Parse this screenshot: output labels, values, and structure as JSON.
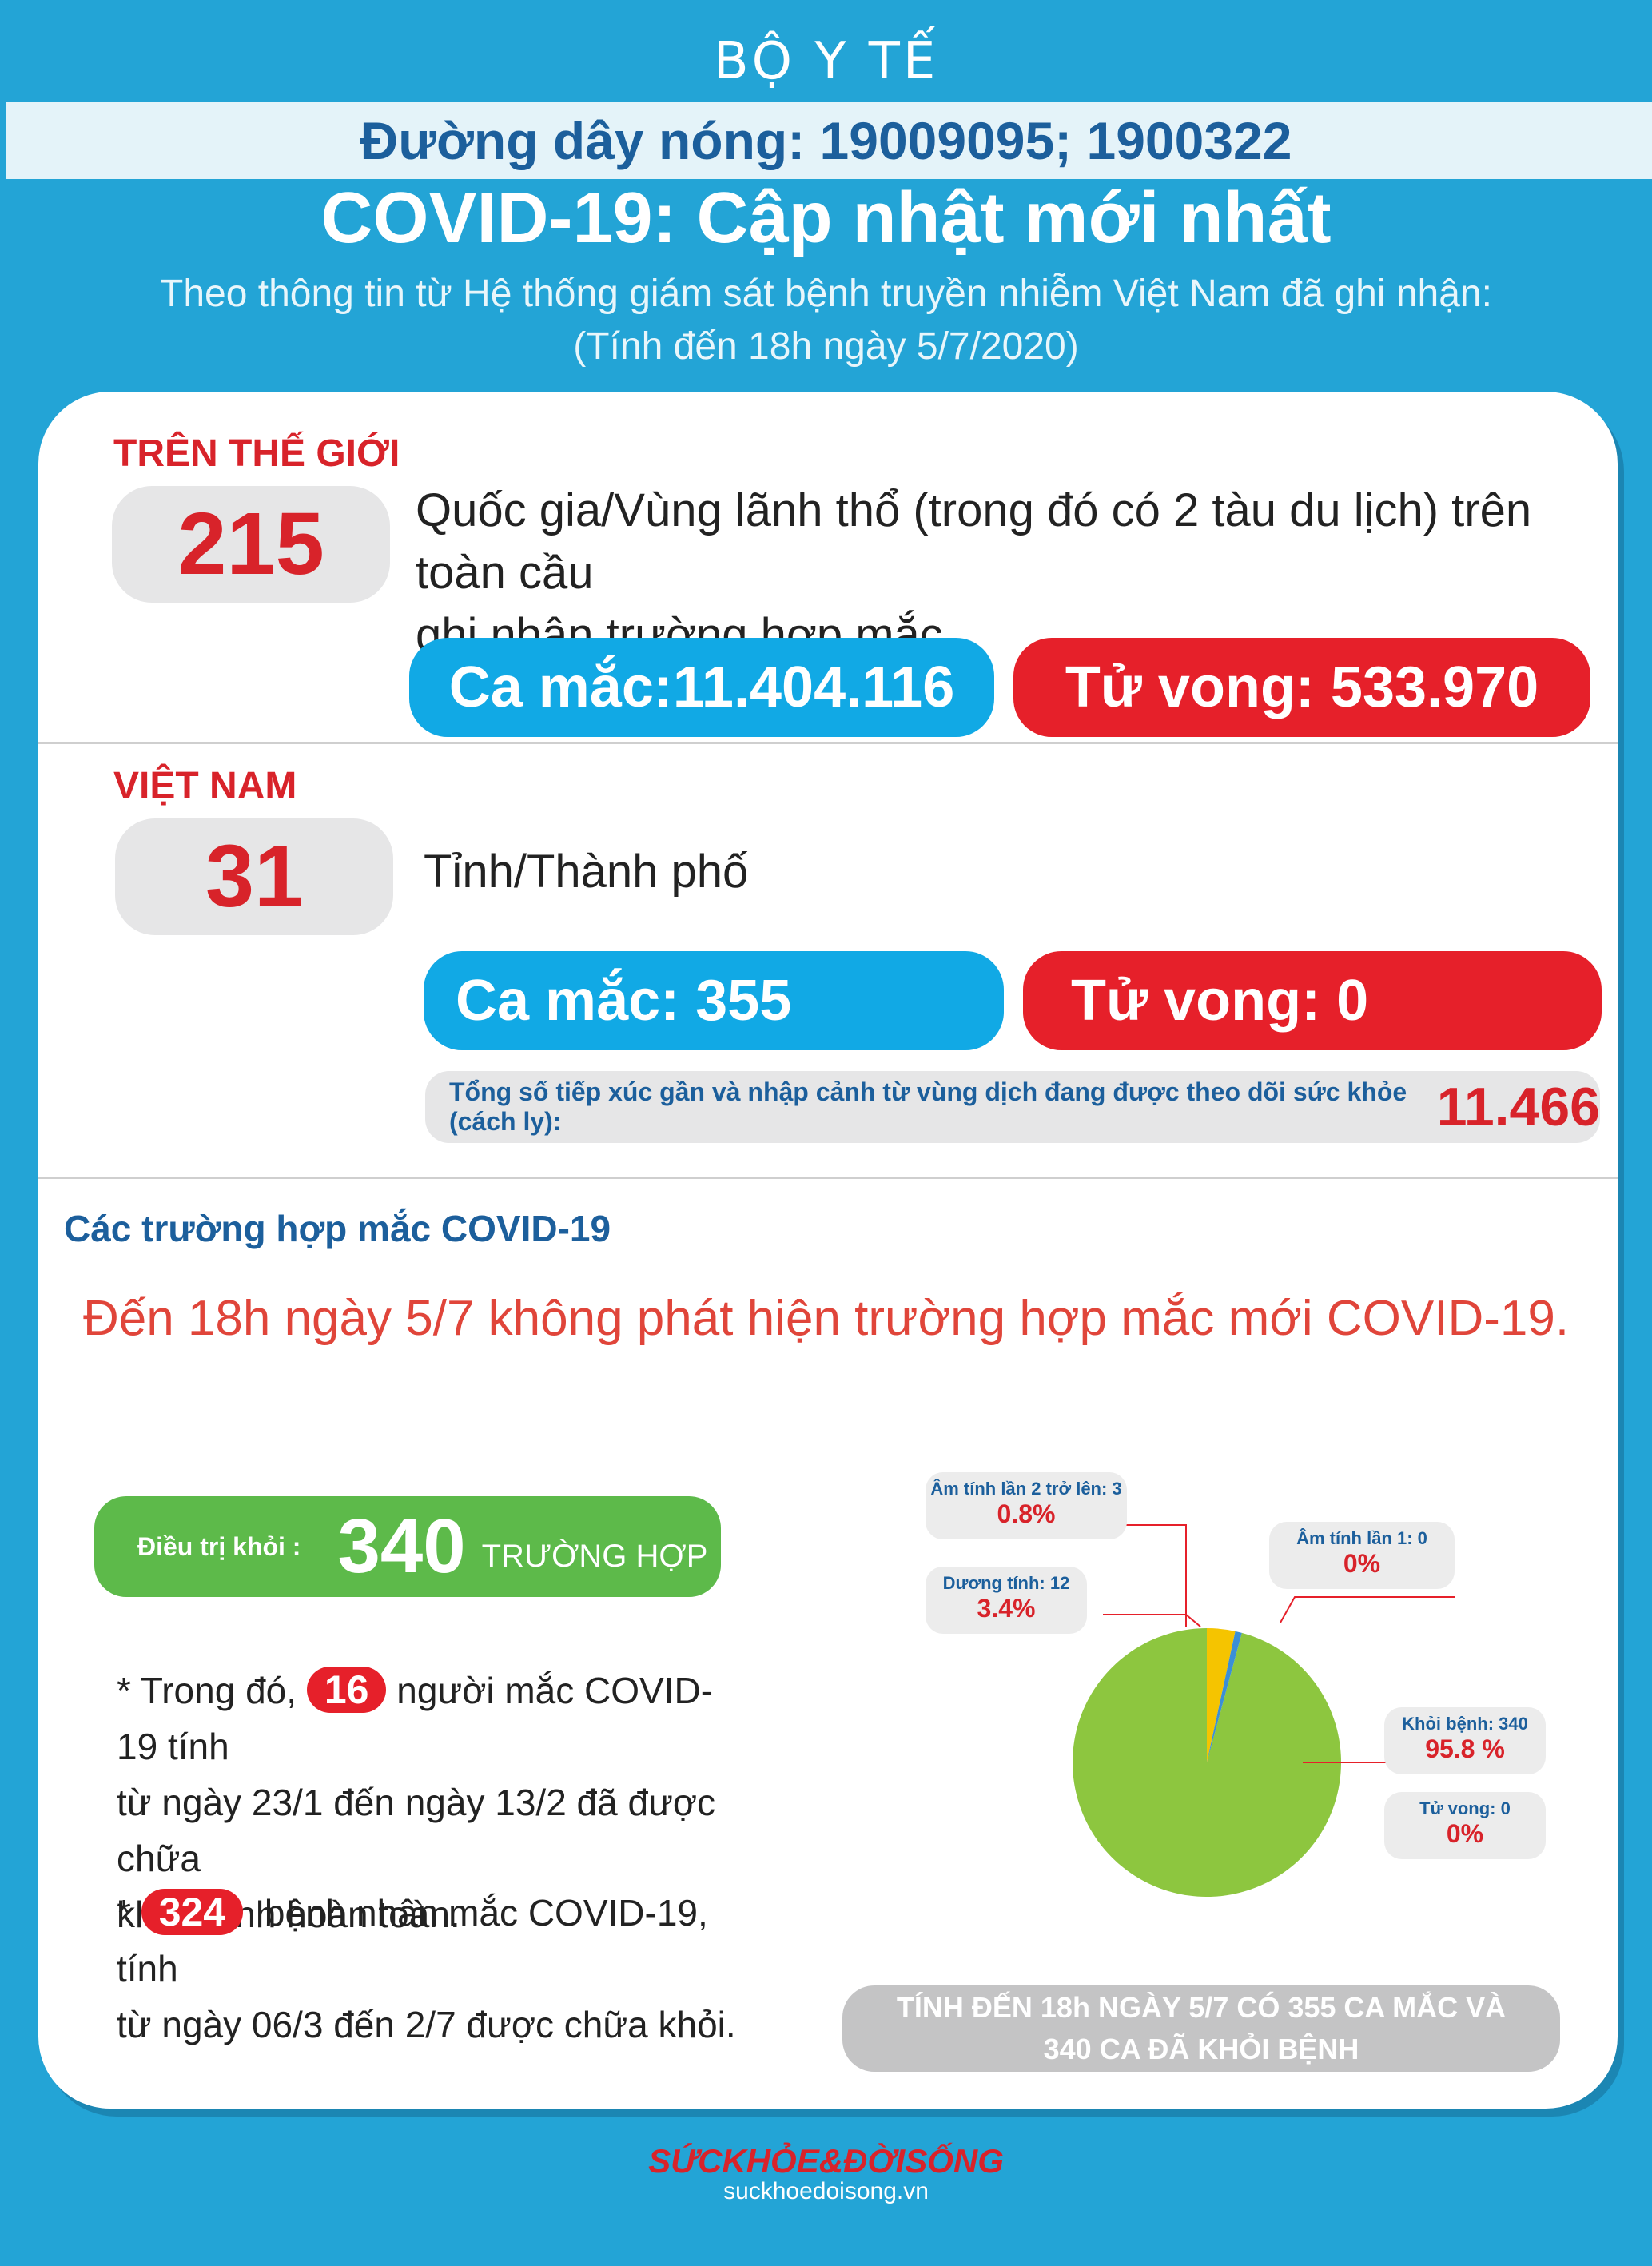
{
  "header": {
    "ministry": "BỘ Y TẾ",
    "hotline": "Đường dây nóng: 19009095; 1900322",
    "title": "COVID-19: Cập nhật mới nhất",
    "subtitle": "Theo thông tin từ Hệ thống giám sát bệnh truyền nhiễm Việt Nam đã ghi nhận:",
    "as_of": "(Tính đến 18h ngày 5/7/2020)"
  },
  "world": {
    "label": "TRÊN THẾ GIỚI",
    "count": "215",
    "desc_line1": "Quốc gia/Vùng lãnh thổ (trong đó có 2 tàu du lịch) trên toàn cầu",
    "desc_line2": "ghi nhận trường hợp mắc",
    "cases": "Ca mắc:11.404.116",
    "deaths": "Tử vong:  533.970"
  },
  "vietnam": {
    "label": "VIỆT NAM",
    "count": "31",
    "desc": "Tỉnh/Thành phố",
    "cases": "Ca mắc: 355",
    "deaths": "Tử vong:  0",
    "contacts_label": "Tổng số tiếp xúc gần và nhập cảnh từ vùng dịch đang được theo dõi sức khỏe (cách ly):",
    "contacts_value": "11.466"
  },
  "cases_section": {
    "heading": "Các trường hợp mắc COVID-19",
    "announcement": "Đến 18h ngày 5/7 không phát hiện trường hợp mắc mới COVID-19.",
    "recovered_label": "Điều trị khỏi :",
    "recovered_value": "340",
    "recovered_unit": "TRƯỜNG HỢP",
    "note1_pre": "* Trong đó,",
    "note1_badge": "16",
    "note1_post": "người mắc COVID-19 tính",
    "note1_line2": "từ ngày 23/1 đến ngày 13/2 đã được chữa",
    "note1_line3": "khỏi bệnh hoàn toàn.",
    "note2_pre": "*",
    "note2_badge": "324",
    "note2_post": "bệnh nhân  mắc COVID-19, tính",
    "note2_line2": "từ ngày 06/3 đến 2/7 được chữa khỏi.",
    "summary_line1": "TÍNH ĐẾN 18h NGÀY 5/7 CÓ 355 CA MẮC VÀ",
    "summary_line2": "340 CA ĐÃ KHỎI BỆNH"
  },
  "chart_data": {
    "type": "pie",
    "slices": [
      {
        "label": "Khỏi bệnh: 340",
        "percent_label": "95.8 %",
        "value": 95.8,
        "color": "#8dc63f"
      },
      {
        "label": "Dương tính: 12",
        "percent_label": "3.4%",
        "value": 3.4,
        "color": "#f5c400"
      },
      {
        "label": "Âm tính lần 2 trở lên: 3",
        "percent_label": "0.8%",
        "value": 0.8,
        "color": "#3b8fd6"
      },
      {
        "label": "Âm tính lần 1: 0",
        "percent_label": "0%",
        "value": 0,
        "color": "#cccccc"
      },
      {
        "label": "Tử vong: 0",
        "percent_label": "0%",
        "value": 0,
        "color": "#e6202a"
      }
    ]
  },
  "footer": {
    "brand": "SỨCKHỎE&ĐỜISỐNG",
    "site": "suckhoedoisong.vn"
  },
  "colors": {
    "background": "#23a4d6",
    "blue_pill": "#11a9e5",
    "red_pill": "#e6202a",
    "green_pill": "#5dba4a",
    "accent_red": "#d8232a",
    "navy": "#1c5f9c"
  }
}
